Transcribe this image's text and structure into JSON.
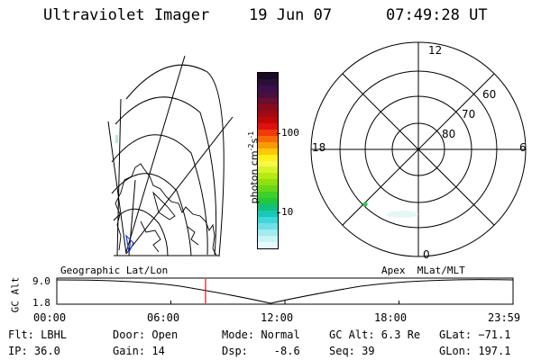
{
  "header": {
    "instrument": "Ultraviolet Imager",
    "date": "19 Jun 07",
    "time": "07:49:28 UT"
  },
  "colorbar": {
    "unit_label": "photon cm",
    "unit_sup1": "-2",
    "unit_mid": "s",
    "unit_sup2": "-1",
    "tick_100": "100",
    "tick_10": "10",
    "colors": [
      "#1a0a24",
      "#2a0f38",
      "#3b0f4a",
      "#4a0f3e",
      "#6a0f2e",
      "#8a0a1e",
      "#a00a12",
      "#c00808",
      "#e01010",
      "#f03a0a",
      "#f86a08",
      "#fa9a08",
      "#fcc808",
      "#fff01a",
      "#f6f84a",
      "#d8f22a",
      "#b6ea10",
      "#8ee010",
      "#66d818",
      "#3ed028",
      "#1fc83e",
      "#12c07a",
      "#18c8b8",
      "#40d6d8",
      "#70e0e4",
      "#a0ecee",
      "#c8f4f6",
      "#e6fafb"
    ]
  },
  "polar": {
    "label_12": "12",
    "label_0": "0",
    "label_18": "18",
    "label_6": "6",
    "label_60": "60",
    "label_70": "70",
    "label_80": "80"
  },
  "timeline": {
    "ylabel": "GC Alt",
    "y_top": "9.0",
    "y_bottom": "1.8",
    "left_title": "Geographic Lat/Lon",
    "right_title": "Apex  MLat/MLT",
    "x_ticks": [
      "00:00",
      "06:00",
      "12:00",
      "18:00",
      "23:59"
    ],
    "marker_time_fraction": 0.326
  },
  "info": {
    "flt": "Flt: LBHL",
    "ip": "IP: 36.0",
    "door": "Door: Open",
    "gain": "Gain: 14",
    "mode": "Mode: Normal",
    "dsp": "Dsp:    -8.6",
    "gcalt": "GC Alt: 6.3 Re",
    "seq": "Seq: 39",
    "glat": "GLat: −71.1",
    "glon": "GLon: 197.1"
  }
}
